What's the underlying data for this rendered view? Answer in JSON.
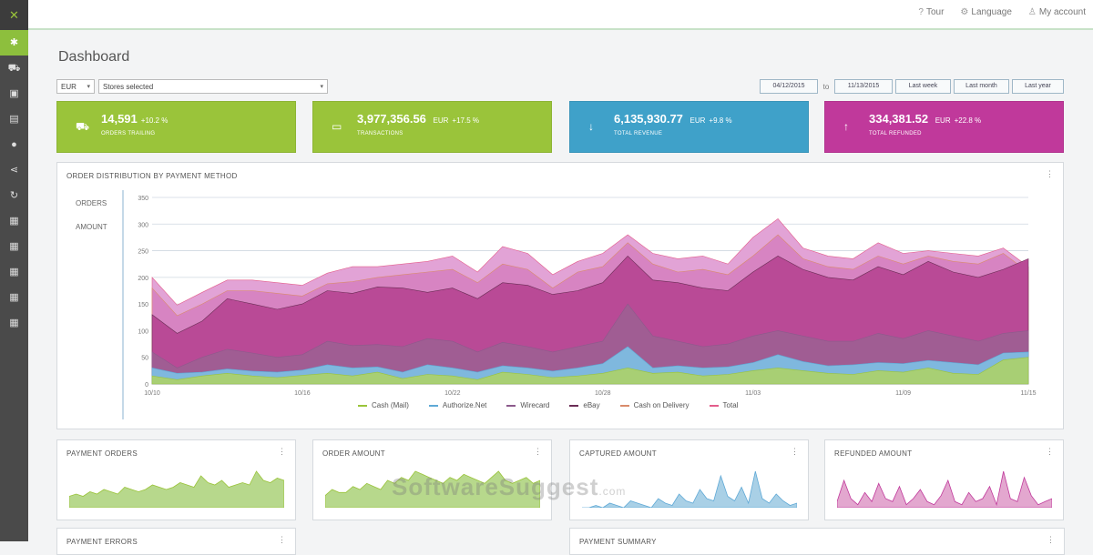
{
  "app": {
    "logo": "✕"
  },
  "sidebar": {
    "items": [
      {
        "icon": "gear-icon",
        "glyph": "✱",
        "active": true
      },
      {
        "icon": "cart-icon",
        "glyph": "⛟"
      },
      {
        "icon": "monitor-icon",
        "glyph": "▣"
      },
      {
        "icon": "document-icon",
        "glyph": "▤"
      },
      {
        "icon": "globe-icon",
        "glyph": "●"
      },
      {
        "icon": "share-icon",
        "glyph": "⋖"
      },
      {
        "icon": "refresh-icon",
        "glyph": "↻"
      },
      {
        "icon": "report-icon",
        "glyph": "▦"
      },
      {
        "icon": "report-icon",
        "glyph": "▦"
      },
      {
        "icon": "report-icon",
        "glyph": "▦"
      },
      {
        "icon": "report-icon",
        "glyph": "▦"
      },
      {
        "icon": "report-icon",
        "glyph": "▦"
      }
    ]
  },
  "topbar": {
    "tour": "Tour",
    "language": "Language",
    "account": "My account"
  },
  "page": {
    "title": "Dashboard"
  },
  "filters": {
    "currency": "EUR",
    "scope": "Stores selected"
  },
  "ranges": {
    "from": "04/12/2015",
    "to": "11/13/2015",
    "presets": [
      "Last week",
      "Last month",
      "Last year"
    ]
  },
  "stats": [
    {
      "value": "14,591",
      "pct": "+10.2 %",
      "label": "ORDERS TRAILING",
      "icon": "cart-icon",
      "glyph": "⛟",
      "color": "#9ac43a"
    },
    {
      "value": "3,977,356.56",
      "unit": "EUR",
      "pct": "+17.5 %",
      "label": "TRANSACTIONS",
      "icon": "money-icon",
      "glyph": "▭",
      "color": "#9ac43a"
    },
    {
      "value": "6,135,930.77",
      "unit": "EUR",
      "pct": "+9.8 %",
      "label": "TOTAL REVENUE",
      "icon": "arrow-down-icon",
      "glyph": "↓",
      "color": "#3fa1c9"
    },
    {
      "value": "334,381.52",
      "unit": "EUR",
      "pct": "+22.8 %",
      "label": "TOTAL REFUNDED",
      "icon": "arrow-up-icon",
      "glyph": "↑",
      "color": "#c0399b"
    }
  ],
  "main_chart": {
    "title": "ORDER DISTRIBUTION BY PAYMENT METHOD",
    "metrics": [
      "ORDERS",
      "AMOUNT"
    ],
    "menu": "⋮",
    "x_labels": [
      "10/10",
      "10/16",
      "10/22",
      "10/28",
      "11/03",
      "11/09",
      "11/15"
    ],
    "y_labels": [
      "0",
      "50",
      "100",
      "150",
      "200",
      "250",
      "300",
      "350"
    ],
    "legend": [
      {
        "name": "Cash (Mail)",
        "color": "#9ac43a"
      },
      {
        "name": "Authorize.Net",
        "color": "#5fa9d6"
      },
      {
        "name": "Wirecard",
        "color": "#8c5a8c"
      },
      {
        "name": "eBay",
        "color": "#6a2d55"
      },
      {
        "name": "Cash on Delivery",
        "color": "#d98b6b"
      },
      {
        "name": "Total",
        "color": "#e35d8b"
      }
    ]
  },
  "chart_data": {
    "type": "area",
    "x": [
      "10/10",
      "10/11",
      "10/12",
      "10/13",
      "10/14",
      "10/15",
      "10/16",
      "10/17",
      "10/18",
      "10/19",
      "10/20",
      "10/21",
      "10/22",
      "10/23",
      "10/24",
      "10/25",
      "10/26",
      "10/27",
      "10/28",
      "10/29",
      "10/30",
      "10/31",
      "11/01",
      "11/02",
      "11/03",
      "11/04",
      "11/05",
      "11/06",
      "11/07",
      "11/08",
      "11/09",
      "11/10",
      "11/11",
      "11/12",
      "11/13",
      "11/14"
    ],
    "series": [
      {
        "name": "Cash (Mail)",
        "values": [
          15,
          8,
          15,
          20,
          15,
          12,
          16,
          20,
          15,
          22,
          10,
          18,
          15,
          8,
          22,
          18,
          12,
          15,
          20,
          30,
          20,
          22,
          15,
          18,
          25,
          30,
          25,
          20,
          18,
          25,
          22,
          30,
          20,
          18,
          45,
          50
        ]
      },
      {
        "name": "Authorize.Net",
        "values": [
          30,
          20,
          22,
          28,
          24,
          22,
          26,
          36,
          30,
          32,
          22,
          36,
          30,
          22,
          34,
          30,
          24,
          30,
          38,
          70,
          30,
          34,
          30,
          32,
          40,
          55,
          42,
          34,
          36,
          40,
          38,
          44,
          40,
          36,
          58,
          60
        ]
      },
      {
        "name": "Wirecard",
        "values": [
          60,
          30,
          50,
          65,
          58,
          50,
          55,
          80,
          72,
          74,
          70,
          85,
          80,
          60,
          78,
          70,
          60,
          70,
          80,
          150,
          90,
          80,
          70,
          75,
          90,
          100,
          90,
          80,
          80,
          95,
          85,
          100,
          90,
          80,
          95,
          100
        ]
      },
      {
        "name": "eBay",
        "values": [
          130,
          95,
          118,
          160,
          150,
          140,
          150,
          175,
          170,
          182,
          180,
          172,
          180,
          160,
          190,
          185,
          168,
          175,
          190,
          240,
          195,
          190,
          180,
          175,
          210,
          240,
          215,
          200,
          195,
          220,
          205,
          230,
          210,
          200,
          215,
          235
        ]
      },
      {
        "name": "Cash on Delivery",
        "values": [
          180,
          128,
          150,
          175,
          175,
          170,
          165,
          188,
          192,
          200,
          205,
          210,
          215,
          190,
          225,
          215,
          180,
          210,
          220,
          265,
          225,
          210,
          215,
          205,
          240,
          280,
          235,
          220,
          215,
          240,
          225,
          240,
          230,
          225,
          245,
          210
        ]
      },
      {
        "name": "Total",
        "values": [
          200,
          148,
          172,
          195,
          195,
          190,
          185,
          208,
          220,
          220,
          225,
          230,
          240,
          210,
          258,
          245,
          205,
          230,
          245,
          280,
          245,
          235,
          240,
          225,
          275,
          310,
          255,
          240,
          235,
          265,
          245,
          250,
          245,
          240,
          255,
          220
        ]
      }
    ],
    "ylim": [
      0,
      350
    ]
  },
  "minis": [
    {
      "title": "PAYMENT ORDERS",
      "color": "#9ac43a",
      "fill": "#b7d88c",
      "values": [
        5,
        6,
        5,
        7,
        6,
        8,
        7,
        6,
        9,
        8,
        7,
        8,
        10,
        9,
        8,
        9,
        11,
        10,
        9,
        14,
        11,
        10,
        12,
        9,
        10,
        11,
        10,
        16,
        12,
        11,
        13,
        12
      ]
    },
    {
      "title": "ORDER AMOUNT",
      "color": "#9ac43a",
      "fill": "#b7d88c",
      "values": [
        4,
        6,
        5,
        5,
        7,
        6,
        8,
        7,
        6,
        9,
        8,
        10,
        9,
        12,
        11,
        10,
        9,
        8,
        10,
        9,
        11,
        10,
        9,
        8,
        10,
        12,
        9,
        8,
        9,
        10,
        8,
        9
      ]
    },
    {
      "title": "CAPTURED AMOUNT",
      "color": "#5fa9d6",
      "fill": "#a9d0e6",
      "values": [
        0,
        0,
        1,
        0,
        2,
        1,
        0,
        3,
        2,
        1,
        0,
        4,
        2,
        1,
        6,
        3,
        2,
        8,
        4,
        3,
        14,
        5,
        3,
        9,
        2,
        16,
        4,
        2,
        6,
        3,
        1,
        2
      ]
    },
    {
      "title": "REFUNDED AMOUNT",
      "color": "#c0399b",
      "fill": "#e3a7cf",
      "values": [
        2,
        9,
        3,
        1,
        5,
        2,
        8,
        3,
        2,
        7,
        1,
        3,
        6,
        2,
        1,
        4,
        9,
        2,
        1,
        5,
        2,
        3,
        7,
        1,
        12,
        3,
        2,
        10,
        4,
        1,
        2,
        3
      ]
    },
    {
      "title": "PAYMENT ERRORS",
      "color": "#9ac43a",
      "fill": "#b7d88c",
      "values": []
    },
    {
      "title": "PAYMENT SUMMARY",
      "color": "#5fa9d6",
      "fill": "#a9d0e6",
      "values": []
    }
  ],
  "watermark": {
    "text": "SoftwareSuggest",
    "suffix": ".com"
  }
}
